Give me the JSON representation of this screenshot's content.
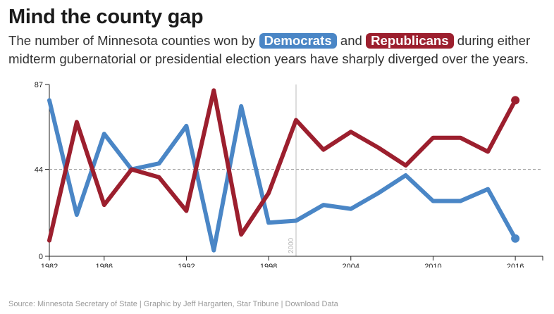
{
  "header": {
    "title": "Mind the county gap",
    "subtitle_pre": "The number of Minnesota counties won by",
    "subtitle_mid": "and",
    "subtitle_post": "during either midterm gubernatorial or presidential election years have sharply diverged over the years.",
    "dem_label": "Democrats",
    "rep_label": "Republicans"
  },
  "footer": {
    "source": "Source: Minnesota Secretary of State | Graphic by Jeff Hargarten, Star Tribune | ",
    "download_label": "Download Data"
  },
  "colors": {
    "dem": "#4a86c6",
    "rep": "#9c1f2e",
    "marker": "#bbbbbb",
    "grid": "#999999"
  },
  "chart_data": {
    "type": "line",
    "x": [
      1982,
      1984,
      1986,
      1988,
      1990,
      1992,
      1994,
      1996,
      1998,
      2000,
      2002,
      2004,
      2006,
      2008,
      2010,
      2012,
      2014,
      2016
    ],
    "series": [
      {
        "name": "Democrats",
        "color": "#4a86c6",
        "values": [
          79,
          21,
          62,
          44,
          47,
          66,
          3,
          76,
          17,
          18,
          26,
          24,
          32,
          41,
          28,
          28,
          34,
          9
        ]
      },
      {
        "name": "Republicans",
        "color": "#9c1f2e",
        "values": [
          8,
          68,
          26,
          44,
          40,
          23,
          84,
          11,
          32,
          69,
          54,
          63,
          55,
          46,
          60,
          60,
          53,
          79
        ]
      }
    ],
    "x_ticks": [
      1982,
      1986,
      1992,
      1998,
      2004,
      2010,
      2016
    ],
    "y_ticks": [
      0,
      44,
      87
    ],
    "ylim": [
      0,
      87
    ],
    "xlim": [
      1982,
      2018
    ],
    "reference_line_y": 44,
    "vertical_marker": {
      "x": 2000,
      "label": "2000"
    }
  }
}
